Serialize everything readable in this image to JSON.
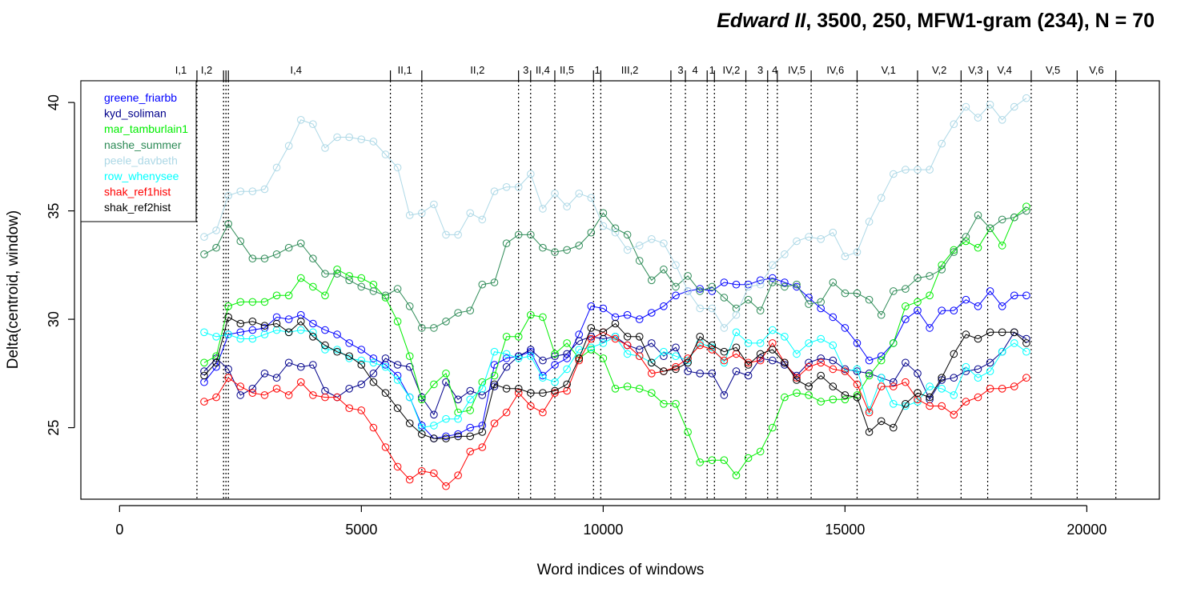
{
  "chart_data": {
    "type": "line",
    "title_italic": "Edward II",
    "title_rest": ", 3500, 250, MFW1-gram (234), N = 70",
    "xlabel": "Word indices of windows",
    "ylabel": "Delta(centroid, window)",
    "xlim": [
      -800,
      21500
    ],
    "ylim": [
      21.7,
      41.0
    ],
    "xticks": [
      0,
      5000,
      10000,
      15000,
      20000
    ],
    "xtick_labels": [
      "0",
      "5000",
      "10000",
      "15000",
      "20000"
    ],
    "yticks": [
      25,
      30,
      35,
      40
    ],
    "ytick_labels": [
      "25",
      "30",
      "35",
      "40"
    ],
    "grid": false,
    "legend_position": "top-left",
    "scene_boundaries": [
      1600,
      2150,
      2200,
      2250,
      5600,
      6250,
      8250,
      8500,
      9000,
      9800,
      9950,
      11400,
      11700,
      12150,
      12300,
      12950,
      13400,
      13600,
      14300,
      15250,
      16500,
      17400,
      17950,
      18850,
      19800,
      20600
    ],
    "scene_labels": [
      {
        "x": 1270,
        "label": "I,1"
      },
      {
        "x": 1800,
        "label": "I,2"
      },
      {
        "x": 3650,
        "label": "I,4"
      },
      {
        "x": 5900,
        "label": "II,1"
      },
      {
        "x": 7400,
        "label": "II,2"
      },
      {
        "x": 8400,
        "label": "3"
      },
      {
        "x": 8750,
        "label": "II,4"
      },
      {
        "x": 9250,
        "label": "II,5"
      },
      {
        "x": 9880,
        "label": "1"
      },
      {
        "x": 10550,
        "label": "III,2"
      },
      {
        "x": 11600,
        "label": "3"
      },
      {
        "x": 11900,
        "label": "4"
      },
      {
        "x": 12250,
        "label": "1"
      },
      {
        "x": 12650,
        "label": "IV,2"
      },
      {
        "x": 13250,
        "label": "3"
      },
      {
        "x": 13550,
        "label": "4"
      },
      {
        "x": 14000,
        "label": "IV,5"
      },
      {
        "x": 14800,
        "label": "IV,6"
      },
      {
        "x": 15900,
        "label": "V,1"
      },
      {
        "x": 16950,
        "label": "V,2"
      },
      {
        "x": 17700,
        "label": "V,3"
      },
      {
        "x": 18300,
        "label": "V,4"
      },
      {
        "x": 19300,
        "label": "V,5"
      },
      {
        "x": 20200,
        "label": "V,6"
      }
    ],
    "x": [
      1750,
      2000,
      2250,
      2500,
      2750,
      3000,
      3250,
      3500,
      3750,
      4000,
      4250,
      4500,
      4750,
      5000,
      5250,
      5500,
      5750,
      6000,
      6250,
      6500,
      6750,
      7000,
      7250,
      7500,
      7750,
      8000,
      8250,
      8500,
      8750,
      9000,
      9250,
      9500,
      9750,
      10000,
      10250,
      10500,
      10750,
      11000,
      11250,
      11500,
      11750,
      12000,
      12250,
      12500,
      12750,
      13000,
      13250,
      13500,
      13750,
      14000,
      14250,
      14500,
      14750,
      15000,
      15250,
      15500,
      15750,
      16000,
      16250,
      16500,
      16750,
      17000,
      17250,
      17500,
      17750,
      18000,
      18250,
      18500,
      18750
    ],
    "series": [
      {
        "name": "greene_friarbb",
        "color": "#0000ff",
        "values": [
          27.1,
          27.8,
          29.3,
          29.4,
          29.5,
          29.6,
          30.1,
          30.0,
          30.2,
          29.8,
          29.5,
          29.3,
          28.9,
          28.6,
          28.2,
          27.9,
          27.4,
          26.4,
          25.1,
          24.5,
          24.6,
          24.7,
          25.0,
          25.1,
          27.9,
          28.2,
          28.3,
          28.5,
          27.4,
          27.9,
          28.2,
          29.3,
          30.6,
          30.5,
          30.1,
          30.2,
          30.0,
          30.3,
          30.6,
          31.1,
          31.3,
          31.4,
          31.3,
          31.7,
          31.6,
          31.6,
          31.8,
          31.9,
          31.7,
          31.5,
          31.0,
          30.5,
          30.1,
          29.6,
          28.9,
          28.1,
          28.3,
          28.9,
          30.0,
          30.4,
          29.6,
          30.4,
          30.4,
          30.9,
          30.6,
          31.3,
          30.6,
          31.1,
          31.1
        ]
      },
      {
        "name": "kyd_soliman",
        "color": "#00008b",
        "values": [
          27.6,
          28.2,
          27.7,
          26.5,
          26.8,
          27.5,
          27.3,
          28.0,
          27.8,
          27.9,
          26.7,
          26.4,
          26.8,
          27.0,
          27.5,
          28.2,
          27.9,
          27.8,
          26.4,
          25.6,
          27.1,
          26.3,
          26.7,
          26.5,
          26.9,
          27.8,
          28.3,
          28.6,
          28.1,
          28.3,
          28.4,
          29.0,
          29.2,
          29.1,
          29.2,
          28.8,
          28.6,
          28.9,
          28.3,
          28.7,
          27.6,
          27.5,
          27.5,
          26.5,
          27.6,
          27.4,
          28.2,
          28.1,
          27.9,
          27.4,
          28.0,
          28.2,
          28.1,
          27.7,
          27.6,
          27.5,
          27.3,
          27.1,
          28.0,
          27.5,
          26.3,
          27.2,
          27.3,
          27.6,
          27.7,
          28.0,
          28.5,
          29.4,
          29.1
        ]
      },
      {
        "name": "mar_tamburlain1",
        "color": "#00ee00",
        "values": [
          28.0,
          28.3,
          30.6,
          30.8,
          30.8,
          30.8,
          31.1,
          31.1,
          31.9,
          31.5,
          31.1,
          32.3,
          32.0,
          31.9,
          31.6,
          31.0,
          29.9,
          28.3,
          26.3,
          27.0,
          27.5,
          25.7,
          25.8,
          27.1,
          27.4,
          29.2,
          29.2,
          30.2,
          30.1,
          28.4,
          28.9,
          28.2,
          28.6,
          28.2,
          26.8,
          26.9,
          26.8,
          26.6,
          26.1,
          26.1,
          24.8,
          23.4,
          23.5,
          23.5,
          22.8,
          23.6,
          23.9,
          25.0,
          26.4,
          26.6,
          26.5,
          26.2,
          26.3,
          26.3,
          26.5,
          27.4,
          28.1,
          28.9,
          30.6,
          30.8,
          31.1,
          32.5,
          33.2,
          33.6,
          33.3,
          34.2,
          33.4,
          34.7,
          35.2
        ]
      },
      {
        "name": "nashe_summer",
        "color": "#2e8b57",
        "values": [
          33.0,
          33.3,
          34.4,
          33.6,
          32.8,
          32.8,
          33.0,
          33.3,
          33.5,
          32.8,
          32.1,
          32.1,
          31.8,
          31.5,
          31.3,
          31.1,
          31.4,
          30.6,
          29.6,
          29.6,
          29.9,
          30.3,
          30.4,
          31.6,
          31.7,
          33.5,
          33.9,
          33.9,
          33.3,
          33.1,
          33.2,
          33.4,
          34.0,
          34.9,
          34.2,
          33.9,
          32.7,
          31.8,
          32.3,
          31.5,
          32.0,
          31.3,
          31.5,
          31.0,
          30.5,
          30.9,
          30.4,
          31.7,
          31.5,
          31.6,
          30.7,
          30.8,
          31.7,
          31.2,
          31.2,
          30.9,
          30.2,
          31.3,
          31.4,
          31.9,
          32.0,
          32.3,
          33.1,
          33.8,
          34.8,
          34.2,
          34.6,
          34.7,
          35.0
        ]
      },
      {
        "name": "peele_davbeth",
        "color": "#add8e6",
        "values": [
          33.8,
          34.1,
          35.7,
          35.9,
          35.9,
          36.0,
          37.0,
          38.0,
          39.2,
          39.0,
          37.9,
          38.4,
          38.4,
          38.3,
          38.2,
          37.6,
          37.0,
          34.8,
          34.9,
          35.3,
          33.9,
          33.9,
          34.9,
          34.6,
          35.9,
          36.1,
          36.1,
          36.7,
          35.1,
          35.8,
          35.2,
          35.8,
          35.6,
          34.3,
          34.0,
          33.2,
          33.4,
          33.7,
          33.5,
          32.5,
          31.3,
          30.5,
          30.5,
          29.6,
          30.2,
          31.5,
          31.6,
          32.5,
          33.0,
          33.6,
          33.8,
          33.7,
          34.0,
          32.9,
          33.1,
          34.5,
          35.6,
          36.7,
          36.9,
          36.9,
          36.9,
          38.1,
          39.0,
          39.8,
          39.3,
          39.9,
          39.2,
          39.8,
          40.2
        ]
      },
      {
        "name": "row_whenysee",
        "color": "#00ffff",
        "values": [
          29.4,
          29.2,
          29.3,
          29.1,
          29.1,
          29.3,
          29.5,
          29.4,
          29.5,
          29.4,
          28.6,
          28.6,
          28.2,
          28.1,
          28.0,
          27.8,
          27.2,
          26.4,
          25.0,
          25.1,
          25.4,
          25.4,
          26.3,
          26.8,
          28.5,
          28.4,
          28.2,
          28.3,
          27.3,
          27.1,
          27.7,
          28.6,
          28.7,
          28.9,
          29.2,
          28.4,
          28.3,
          28.0,
          28.5,
          28.3,
          28.1,
          28.9,
          28.7,
          28.0,
          29.4,
          28.9,
          28.9,
          29.5,
          29.2,
          28.4,
          28.9,
          29.1,
          28.8,
          27.6,
          27.7,
          25.8,
          27.3,
          26.1,
          26.0,
          26.2,
          26.9,
          26.8,
          26.5,
          27.8,
          27.3,
          27.6,
          28.5,
          28.9,
          28.5
        ]
      },
      {
        "name": "shak_ref1hist",
        "color": "#ff0000",
        "values": [
          26.2,
          26.4,
          27.3,
          26.9,
          26.6,
          26.5,
          26.8,
          26.5,
          27.1,
          26.5,
          26.4,
          26.4,
          25.9,
          25.8,
          25.0,
          24.1,
          23.2,
          22.6,
          23.0,
          22.9,
          22.3,
          22.8,
          23.9,
          24.1,
          25.2,
          25.7,
          26.6,
          26.0,
          25.7,
          26.6,
          26.7,
          28.1,
          29.1,
          29.4,
          29.1,
          28.8,
          28.3,
          27.5,
          27.6,
          27.8,
          28.2,
          28.8,
          28.6,
          28.1,
          28.4,
          28.0,
          28.1,
          28.9,
          28.0,
          27.3,
          27.8,
          28.0,
          27.7,
          27.6,
          27.0,
          25.7,
          26.9,
          26.9,
          27.1,
          26.3,
          26.0,
          26.0,
          25.6,
          26.2,
          26.4,
          26.8,
          26.8,
          26.9,
          27.3
        ]
      },
      {
        "name": "shak_ref2hist",
        "color": "#000000",
        "values": [
          27.4,
          28.0,
          30.1,
          29.8,
          29.9,
          29.7,
          29.8,
          29.4,
          29.9,
          29.2,
          28.8,
          28.5,
          28.3,
          27.9,
          27.1,
          26.6,
          25.9,
          25.2,
          24.7,
          24.5,
          24.5,
          24.6,
          24.6,
          24.8,
          27.0,
          26.8,
          26.8,
          26.6,
          26.6,
          26.7,
          27.0,
          28.2,
          29.6,
          29.4,
          29.8,
          29.2,
          29.2,
          28.0,
          27.6,
          27.7,
          28.0,
          29.2,
          28.8,
          28.5,
          28.7,
          27.9,
          28.4,
          28.6,
          28.0,
          27.2,
          26.9,
          27.4,
          26.9,
          26.5,
          26.4,
          24.8,
          25.3,
          25.0,
          26.1,
          26.6,
          26.4,
          27.3,
          28.4,
          29.3,
          29.1,
          29.4,
          29.4,
          29.4,
          28.9
        ]
      }
    ]
  }
}
